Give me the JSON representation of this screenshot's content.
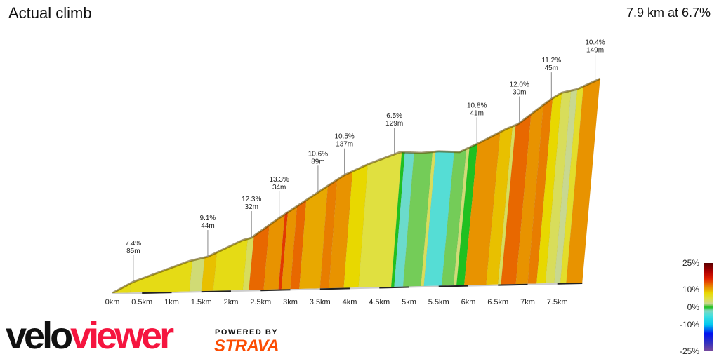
{
  "header": {
    "title": "Actual climb",
    "summary": "7.9 km at 6.7%"
  },
  "branding": {
    "velo": "velo",
    "viewer": "viewer",
    "powered_by": "POWERED BY",
    "strava": "STRAVA"
  },
  "chart_data": {
    "type": "area",
    "title": "Actual climb",
    "xlabel": "",
    "ylabel": "",
    "xlim": [
      0,
      7.9
    ],
    "x_ticks": [
      "0km",
      "0.5km",
      "1km",
      "1.5km",
      "2km",
      "2.5km",
      "3km",
      "3.5km",
      "4km",
      "4.5km",
      "5km",
      "5.5km",
      "6km",
      "6.5km",
      "7km",
      "7.5km"
    ],
    "x_tick_values": [
      0,
      0.5,
      1,
      1.5,
      2,
      2.5,
      3,
      3.5,
      4,
      4.5,
      5,
      5.5,
      6,
      6.5,
      7,
      7.5
    ],
    "profile": [
      [
        0,
        0
      ],
      [
        0.34,
        27
      ],
      [
        1.25,
        76
      ],
      [
        1.55,
        86
      ],
      [
        2.11,
        125
      ],
      [
        2.26,
        131
      ],
      [
        2.71,
        179
      ],
      [
        3.36,
        243
      ],
      [
        3.76,
        282
      ],
      [
        4.16,
        309
      ],
      [
        4.67,
        337
      ],
      [
        5.02,
        334
      ],
      [
        5.3,
        337
      ],
      [
        5.64,
        334
      ],
      [
        5.93,
        354
      ],
      [
        6.39,
        389
      ],
      [
        6.59,
        401
      ],
      [
        7.13,
        462
      ],
      [
        7.3,
        477
      ],
      [
        7.55,
        485
      ],
      [
        7.92,
        510
      ]
    ],
    "gradient_segments": [
      [
        0,
        0.3,
        7
      ],
      [
        0.3,
        1.3,
        7
      ],
      [
        1.3,
        1.5,
        3
      ],
      [
        1.5,
        1.7,
        9
      ],
      [
        1.7,
        2.2,
        7
      ],
      [
        2.2,
        2.3,
        4
      ],
      [
        2.3,
        2.55,
        13
      ],
      [
        2.55,
        2.8,
        11
      ],
      [
        2.8,
        2.85,
        15
      ],
      [
        2.85,
        3.0,
        11
      ],
      [
        3.0,
        3.15,
        13
      ],
      [
        3.15,
        3.5,
        10
      ],
      [
        3.5,
        3.65,
        12
      ],
      [
        3.65,
        3.9,
        11
      ],
      [
        3.9,
        4.15,
        8
      ],
      [
        4.15,
        4.7,
        5
      ],
      [
        4.7,
        4.75,
        0
      ],
      [
        4.75,
        4.9,
        -3
      ],
      [
        4.9,
        5.2,
        1
      ],
      [
        5.2,
        5.25,
        4
      ],
      [
        5.25,
        5.55,
        -4
      ],
      [
        5.55,
        5.75,
        1
      ],
      [
        5.75,
        5.8,
        3
      ],
      [
        5.8,
        5.93,
        0
      ],
      [
        5.93,
        6.3,
        11
      ],
      [
        6.3,
        6.5,
        9
      ],
      [
        6.5,
        6.55,
        4
      ],
      [
        6.55,
        6.8,
        13
      ],
      [
        6.8,
        7.0,
        11
      ],
      [
        7.0,
        7.15,
        12
      ],
      [
        7.15,
        7.3,
        8
      ],
      [
        7.3,
        7.45,
        4
      ],
      [
        7.45,
        7.55,
        2
      ],
      [
        7.55,
        7.65,
        6
      ],
      [
        7.65,
        7.92,
        11
      ]
    ],
    "annotations": [
      {
        "km": 0.34,
        "grade": "7.4%",
        "length": "85m"
      },
      {
        "km": 1.55,
        "grade": "9.1%",
        "length": "44m"
      },
      {
        "km": 2.26,
        "grade": "12.3%",
        "length": "32m"
      },
      {
        "km": 2.71,
        "grade": "13.3%",
        "length": "34m"
      },
      {
        "km": 3.34,
        "grade": "10.6%",
        "length": "89m"
      },
      {
        "km": 3.77,
        "grade": "10.5%",
        "length": "137m"
      },
      {
        "km": 4.58,
        "grade": "6.5%",
        "length": "129m"
      },
      {
        "km": 5.92,
        "grade": "10.8%",
        "length": "41m"
      },
      {
        "km": 6.61,
        "grade": "12.0%",
        "length": "30m"
      },
      {
        "km": 7.13,
        "grade": "11.2%",
        "length": "45m"
      },
      {
        "km": 7.84,
        "grade": "10.4%",
        "length": "149m"
      }
    ],
    "legend": {
      "placement": "bottom-right",
      "labels": [
        "25%",
        "10%",
        "0%",
        "-10%",
        "-25%"
      ],
      "label_values": [
        25,
        10,
        0,
        -10,
        -25
      ],
      "color_stops": [
        [
          -25,
          "#7a4a9a"
        ],
        [
          -20,
          "#3030c0"
        ],
        [
          -15,
          "#0010f0"
        ],
        [
          -10,
          "#00c8f0"
        ],
        [
          -5,
          "#40e0e0"
        ],
        [
          -2,
          "#80d8c0"
        ],
        [
          0,
          "#20c020"
        ],
        [
          2,
          "#c8d890"
        ],
        [
          5,
          "#e0e040"
        ],
        [
          8,
          "#e8d800"
        ],
        [
          10,
          "#e8a800"
        ],
        [
          13,
          "#e86800"
        ],
        [
          16,
          "#e02000"
        ],
        [
          20,
          "#b00000"
        ],
        [
          25,
          "#5a0000"
        ]
      ]
    }
  }
}
